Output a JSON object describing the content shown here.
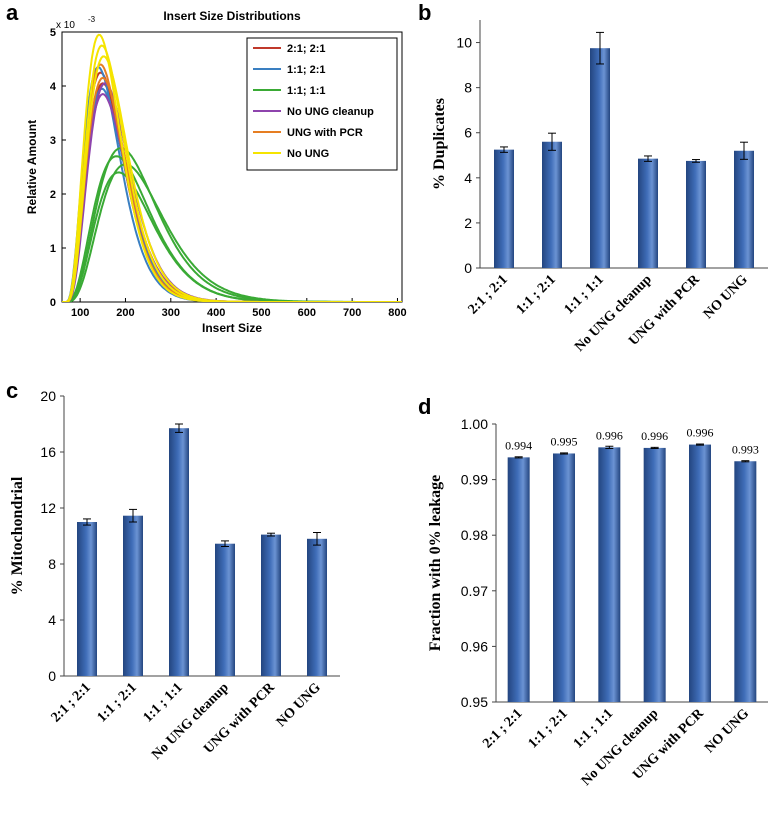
{
  "panels": {
    "a": "a",
    "b": "b",
    "c": "c",
    "d": "d"
  },
  "chart_data": [
    {
      "panel": "a",
      "type": "line",
      "title": "Insert Size Distributions",
      "xlabel": "Insert Size",
      "ylabel": "Relative Amount",
      "y_exponent_label": "x 10",
      "y_exponent_power": "-3",
      "xlim": [
        60,
        810
      ],
      "ylim": [
        0,
        5
      ],
      "xticks": [
        "100",
        "200",
        "300",
        "400",
        "500",
        "600",
        "700",
        "800"
      ],
      "xtick_values": [
        100,
        200,
        300,
        400,
        500,
        600,
        700,
        800
      ],
      "yticks": [
        "0",
        "1",
        "2",
        "3",
        "4",
        "5"
      ],
      "ytick_values": [
        0,
        1,
        2,
        3,
        4,
        5
      ],
      "series": [
        {
          "name": "2:1; 2:1",
          "color": "#c0392b",
          "curves": [
            {
              "peak": 4.25,
              "mode": 145,
              "spread": 62
            },
            {
              "peak": 4.05,
              "mode": 150,
              "spread": 64
            }
          ]
        },
        {
          "name": "1:1; 2:1",
          "color": "#3a7fc1",
          "curves": [
            {
              "peak": 4.35,
              "mode": 140,
              "spread": 60
            },
            {
              "peak": 3.95,
              "mode": 148,
              "spread": 63
            }
          ]
        },
        {
          "name": "1:1; 1:1",
          "color": "#3aaa35",
          "curves": [
            {
              "peak": 2.85,
              "mode": 190,
              "spread": 95
            },
            {
              "peak": 2.7,
              "mode": 180,
              "spread": 92
            },
            {
              "peak": 2.55,
              "mode": 200,
              "spread": 98
            },
            {
              "peak": 2.4,
              "mode": 185,
              "spread": 90
            }
          ]
        },
        {
          "name": "No UNG cleanup",
          "color": "#8e44ad",
          "curves": [
            {
              "peak": 3.85,
              "mode": 150,
              "spread": 66
            },
            {
              "peak": 4.05,
              "mode": 155,
              "spread": 64
            }
          ]
        },
        {
          "name": "UNG with PCR",
          "color": "#e67e22",
          "curves": [
            {
              "peak": 4.4,
              "mode": 145,
              "spread": 60
            },
            {
              "peak": 4.15,
              "mode": 150,
              "spread": 62
            }
          ]
        },
        {
          "name": "No UNG",
          "color": "#f5e400",
          "curves": [
            {
              "peak": 4.95,
              "mode": 142,
              "spread": 58
            },
            {
              "peak": 4.75,
              "mode": 148,
              "spread": 60
            },
            {
              "peak": 4.55,
              "mode": 152,
              "spread": 63
            }
          ]
        }
      ]
    },
    {
      "panel": "b",
      "type": "bar",
      "ylabel": "% Duplicates",
      "categories": [
        "2:1 ; 2:1",
        "1:1 ; 2:1",
        "1:1 ; 1:1",
        "No UNG cleanup",
        "UNG with PCR",
        "NO UNG"
      ],
      "values": [
        5.25,
        5.6,
        9.75,
        4.85,
        4.75,
        5.2
      ],
      "errors": [
        0.12,
        0.38,
        0.7,
        0.12,
        0.06,
        0.38
      ],
      "ylim": [
        0,
        11
      ],
      "yticks": [
        "0",
        "2",
        "4",
        "6",
        "8",
        "10"
      ],
      "ytick_values": [
        0,
        2,
        4,
        6,
        8,
        10
      ],
      "bar_color": "#3f6db8"
    },
    {
      "panel": "c",
      "type": "bar",
      "ylabel": "% Mitochondrial",
      "categories": [
        "2:1 ; 2:1",
        "1:1 ; 2:1",
        "1:1 ; 1:1",
        "No UNG cleanup",
        "UNG with PCR",
        "NO UNG"
      ],
      "values": [
        11.0,
        11.45,
        17.7,
        9.45,
        10.1,
        9.8
      ],
      "errors": [
        0.22,
        0.45,
        0.3,
        0.2,
        0.1,
        0.45
      ],
      "ylim": [
        0,
        20
      ],
      "yticks": [
        "0",
        "4",
        "8",
        "12",
        "16",
        "20"
      ],
      "ytick_values": [
        0,
        4,
        8,
        12,
        16,
        20
      ],
      "bar_color": "#3f6db8"
    },
    {
      "panel": "d",
      "type": "bar",
      "ylabel": "Fraction with 0% leakage",
      "categories": [
        "2:1 ; 2:1",
        "1:1 ; 2:1",
        "1:1 ; 1:1",
        "No UNG cleanup",
        "UNG with PCR",
        "NO UNG"
      ],
      "values": [
        0.994,
        0.9947,
        0.9958,
        0.9957,
        0.9963,
        0.9933
      ],
      "errors": [
        0.0001,
        0.0001,
        0.0002,
        0.0001,
        0.0001,
        0.0001
      ],
      "data_labels": [
        "0.994",
        "0.995",
        "0.996",
        "0.996",
        "0.996",
        "0.993"
      ],
      "ylim": [
        0.95,
        1.0
      ],
      "yticks": [
        "0.95",
        "0.96",
        "0.97",
        "0.98",
        "0.99",
        "1.00"
      ],
      "ytick_values": [
        0.95,
        0.96,
        0.97,
        0.98,
        0.99,
        1.0
      ],
      "bar_color": "#3f6db8"
    }
  ]
}
